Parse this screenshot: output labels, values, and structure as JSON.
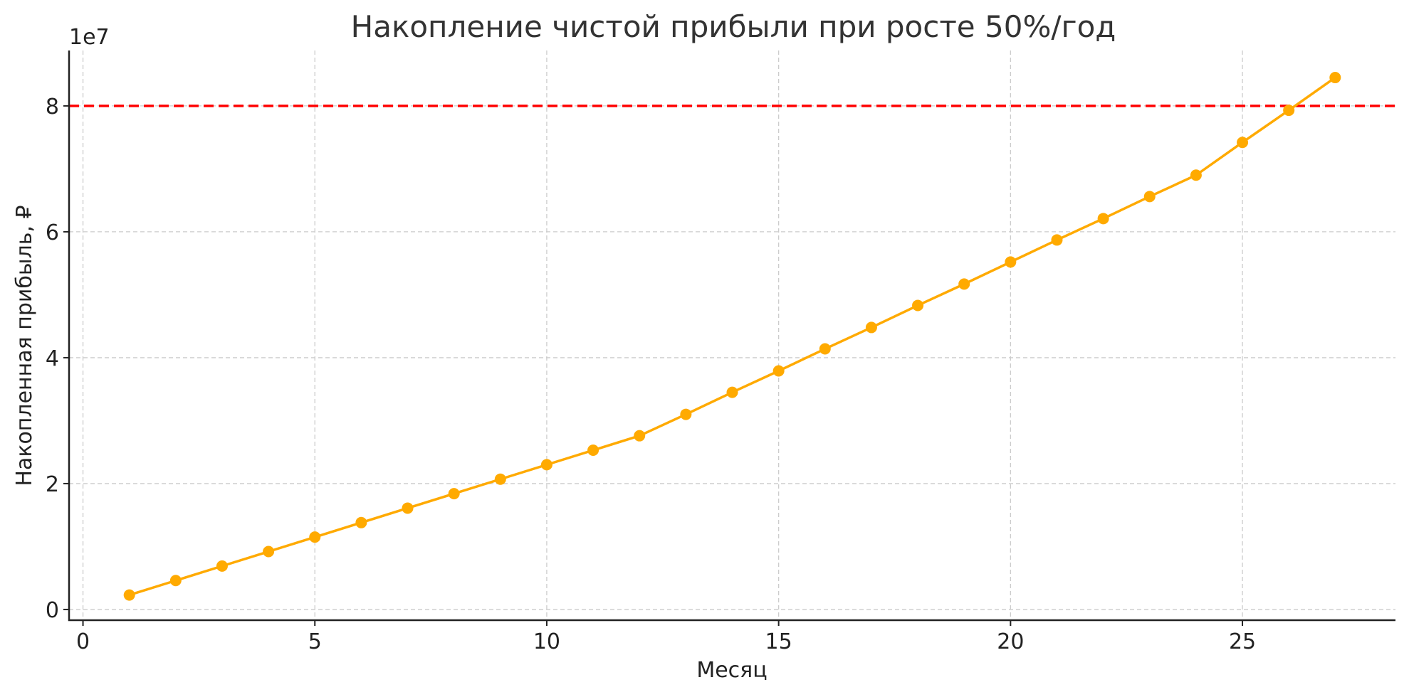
{
  "chart_data": {
    "type": "line",
    "title": "Накопление чистой прибыли при росте 50%/год",
    "xlabel": "Месяц",
    "ylabel": "Накопленная прибыль, ₽",
    "y_offset_label": "1e7",
    "xlim": [
      -0.3,
      28.3
    ],
    "ylim": [
      -1700000,
      88800000
    ],
    "x_ticks": [
      0,
      5,
      10,
      15,
      20,
      25
    ],
    "x_tick_labels": [
      "0",
      "5",
      "10",
      "15",
      "20",
      "25"
    ],
    "y_ticks": [
      0,
      20000000,
      40000000,
      60000000,
      80000000
    ],
    "y_tick_labels": [
      "0",
      "2",
      "4",
      "6",
      "8"
    ],
    "grid": true,
    "threshold": {
      "y": 80000000,
      "color": "#ff0000",
      "style": "dashed"
    },
    "series": [
      {
        "color": "#ffaa00",
        "marker": "circle",
        "x": [
          1,
          2,
          3,
          4,
          5,
          6,
          7,
          8,
          9,
          10,
          11,
          12,
          13,
          14,
          15,
          16,
          17,
          18,
          19,
          20,
          21,
          22,
          23,
          24,
          25,
          26,
          27
        ],
        "y": [
          2300000,
          4600000,
          6900000,
          9200000,
          11500000,
          13800000,
          16100000,
          18400000,
          20700000,
          23000000,
          25300000,
          27600000,
          31000000,
          34500000,
          37900000,
          41400000,
          44800000,
          48300000,
          51700000,
          55200000,
          58700000,
          62100000,
          65600000,
          69000000,
          74200000,
          79300000,
          84500000
        ]
      }
    ]
  }
}
